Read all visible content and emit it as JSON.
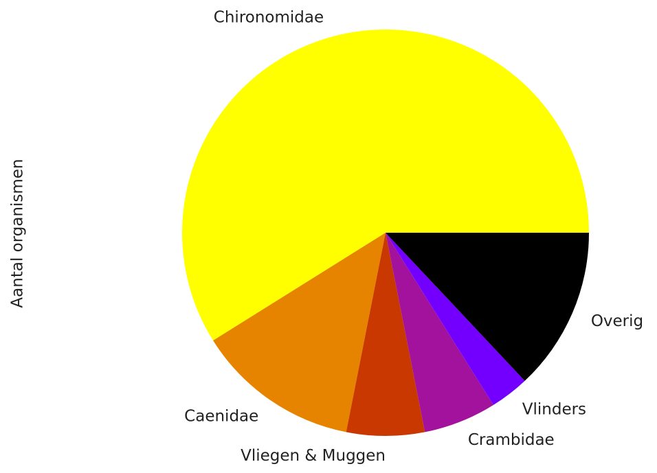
{
  "chart_data": {
    "type": "pie",
    "ylabel": "Aantal organismen",
    "categories": [
      "Chironomidae",
      "Caenidae",
      "Vliegen & Muggen",
      "Crambidae",
      "Vlinders",
      "Overig"
    ],
    "values": [
      58.9,
      13.0,
      6.2,
      5.8,
      3.1,
      13.0
    ],
    "colors": [
      "#ffff00",
      "#e68400",
      "#c93800",
      "#a2129c",
      "#7300ff",
      "#000000"
    ],
    "startangle": 0,
    "direction": "counterclockwise"
  }
}
